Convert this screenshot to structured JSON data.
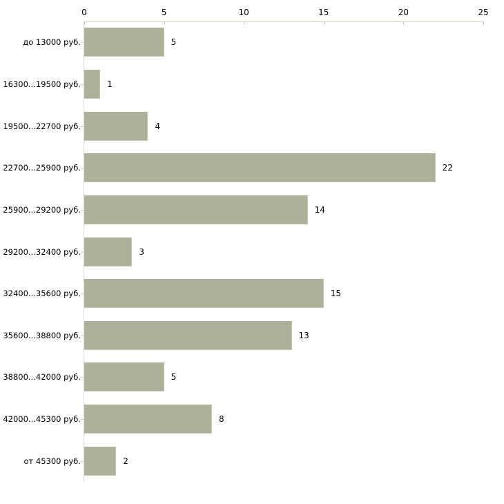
{
  "chart_data": {
    "type": "bar",
    "orientation": "horizontal",
    "title": "",
    "xlabel": "",
    "ylabel": "",
    "categories": [
      "до 13000 руб.",
      "16300...19500 руб.",
      "19500...22700 руб.",
      "22700...25900 руб.",
      "25900...29200 руб.",
      "29200...32400 руб.",
      "32400...35600 руб.",
      "35600...38800 руб.",
      "38800...42000 руб.",
      "42000...45300 руб.",
      "от 45300 руб."
    ],
    "values": [
      5,
      1,
      4,
      22,
      14,
      3,
      15,
      13,
      5,
      8,
      2
    ],
    "xlim": [
      0,
      25
    ],
    "x_ticks": [
      0,
      5,
      10,
      15,
      20,
      25
    ],
    "axis_position": "top",
    "grid": false,
    "legend": false,
    "bar_color": "#acb29a",
    "axis_line_color": "#d5d8c2",
    "tick_mark_color": "#c6cba9",
    "y_axis_color": "#d9d9d9",
    "text_color": "#000000",
    "background_color": "#ffffff"
  }
}
